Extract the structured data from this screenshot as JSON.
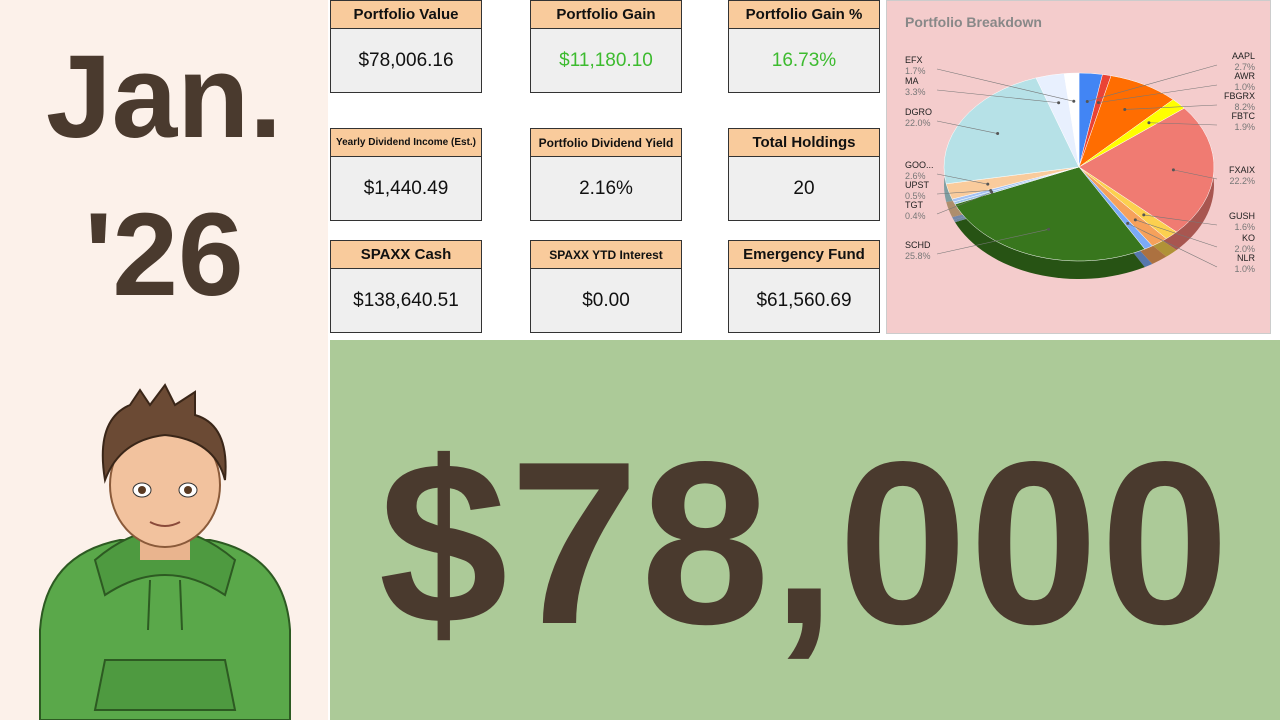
{
  "left": {
    "month": "Jan.",
    "year": "'26"
  },
  "cards": [
    {
      "title": "Portfolio Value",
      "value": "$78,006.16"
    },
    {
      "title": "Portfolio Gain",
      "value": "$11,180.10"
    },
    {
      "title": "Portfolio Gain %",
      "value": "16.73%"
    },
    {
      "title": "Yearly Dividend Income (Est.)",
      "value": "$1,440.49"
    },
    {
      "title": "Portfolio Dividend Yield",
      "value": "2.16%"
    },
    {
      "title": "Total Holdings",
      "value": "20"
    },
    {
      "title": "SPAXX Cash",
      "value": "$138,640.51"
    },
    {
      "title": "SPAXX YTD Interest",
      "value": "$0.00"
    },
    {
      "title": "Emergency Fund",
      "value": "$61,560.69"
    }
  ],
  "chart_data": {
    "type": "pie",
    "title": "Portfolio Breakdown",
    "categories": [
      "AAPL",
      "AWR",
      "FBGRX",
      "FBTC",
      "FXAIX",
      "GUSH",
      "KO",
      "NLR",
      "SCHD",
      "TGT",
      "UPST",
      "GOO...",
      "DGRO",
      "MA",
      "EFX"
    ],
    "values": [
      2.7,
      1.0,
      8.2,
      1.9,
      22.2,
      1.6,
      2.0,
      1.0,
      25.8,
      0.4,
      0.5,
      2.6,
      22.0,
      3.3,
      1.7
    ],
    "value_labels": [
      "2.7%",
      "1.0%",
      "8.2%",
      "1.9%",
      "22.2%",
      "1.6%",
      "2.0%",
      "1.0%",
      "25.8%",
      "0.4%",
      "0.5%",
      "2.6%",
      "22.0%",
      "3.3%",
      "1.7%"
    ],
    "colors": [
      "#4285f4",
      "#ea4335",
      "#ff6d01",
      "#ffff00",
      "#f07b72",
      "#fcd04f",
      "#f6a15b",
      "#7baaf7",
      "#38761d",
      "#9fc5e8",
      "#a4c2f4",
      "#f9cb9c",
      "#b6e1e7",
      "#e8f0fe",
      "#ffffff"
    ]
  },
  "headline": "$78,000"
}
